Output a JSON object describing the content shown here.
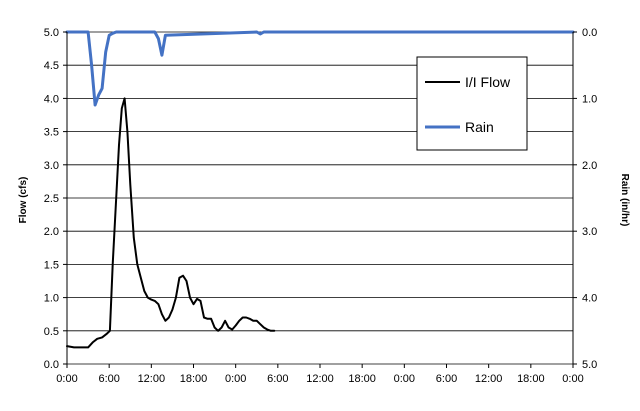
{
  "chart_data": {
    "type": "line",
    "y_left_label": "Flow (cfs)",
    "y_right_label": "Rain (in/hr)",
    "x_tick_labels": [
      "0:00",
      "6:00",
      "12:00",
      "18:00",
      "0:00",
      "6:00",
      "12:00",
      "18:00",
      "0:00",
      "6:00",
      "12:00",
      "18:00",
      "0:00"
    ],
    "x_range_hours": [
      0,
      72
    ],
    "y_left_range": [
      0,
      5
    ],
    "y_left_ticks": [
      "0.0",
      "0.5",
      "1.0",
      "1.5",
      "2.0",
      "2.5",
      "3.0",
      "3.5",
      "4.0",
      "4.5",
      "5.0"
    ],
    "y_right_range_inverted": [
      0,
      5
    ],
    "y_right_ticks": [
      "0.0",
      "1.0",
      "2.0",
      "3.0",
      "4.0",
      "5.0"
    ],
    "grid": true,
    "legend": {
      "placement": "top-right",
      "entries": [
        "I/I Flow",
        "Rain"
      ]
    },
    "series": [
      {
        "name": "I/I Flow",
        "color": "#000000",
        "axis": "left",
        "x_hours": [
          0,
          1,
          2,
          3,
          3.7,
          4.3,
          5,
          5.6,
          6.1,
          6.5,
          7,
          7.4,
          7.8,
          8.2,
          8.6,
          9,
          9.5,
          10,
          10.5,
          11,
          11.5,
          12,
          12.5,
          13,
          13.5,
          14,
          14.5,
          15,
          15.5,
          16,
          16.5,
          17,
          17.5,
          18,
          18.5,
          19,
          19.5,
          20,
          20.5,
          21,
          21.5,
          22,
          22.5,
          23,
          23.5,
          24,
          24.5,
          25,
          25.5,
          26,
          26.5,
          27,
          27.5,
          28,
          28.5,
          29,
          29.5
        ],
        "values": [
          0.27,
          0.25,
          0.25,
          0.25,
          0.33,
          0.38,
          0.4,
          0.45,
          0.5,
          1.5,
          2.5,
          3.3,
          3.85,
          4.0,
          3.5,
          2.7,
          1.9,
          1.5,
          1.3,
          1.1,
          1.0,
          0.97,
          0.95,
          0.9,
          0.75,
          0.65,
          0.7,
          0.82,
          1.0,
          1.3,
          1.33,
          1.25,
          1.0,
          0.9,
          0.98,
          0.95,
          0.7,
          0.68,
          0.68,
          0.55,
          0.5,
          0.55,
          0.65,
          0.55,
          0.52,
          0.58,
          0.65,
          0.7,
          0.7,
          0.68,
          0.65,
          0.65,
          0.6,
          0.55,
          0.52,
          0.5,
          0.5
        ]
      },
      {
        "name": "Rain",
        "color": "#4472c4",
        "axis": "right",
        "x_hours": [
          0,
          2.5,
          3.0,
          3.5,
          4.0,
          4.5,
          5.0,
          5.5,
          6.0,
          6.5,
          7.0,
          12.0,
          12.5,
          13.0,
          13.5,
          14.0,
          27.0,
          27.5,
          28.0,
          72.0
        ],
        "values": [
          0,
          0,
          0,
          0.5,
          1.1,
          0.95,
          0.85,
          0.3,
          0.05,
          0.02,
          0,
          0,
          0,
          0.1,
          0.35,
          0.05,
          0,
          0.03,
          0,
          0
        ]
      }
    ]
  }
}
